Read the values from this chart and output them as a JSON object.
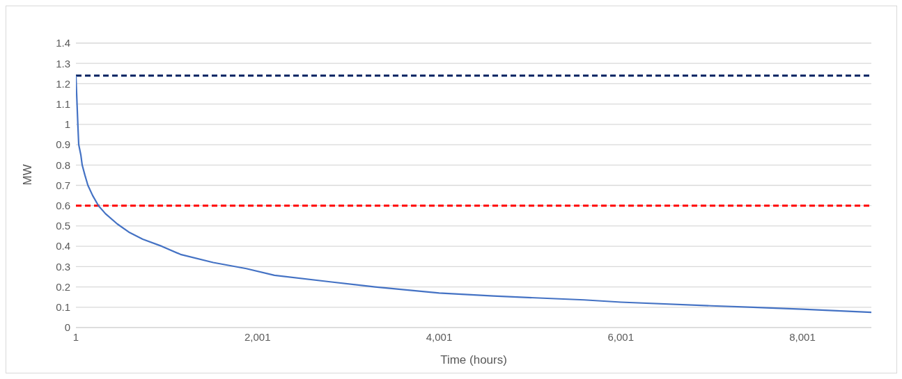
{
  "chart_data": {
    "type": "line",
    "xlabel": "Time (hours)",
    "ylabel": "MW",
    "x": [
      1,
      24,
      32,
      55,
      70,
      100,
      133,
      185,
      249,
      327,
      456,
      583,
      737,
      947,
      1153,
      1513,
      1877,
      2187,
      2800,
      3296,
      4001,
      4600,
      5598,
      6001,
      7000,
      7458,
      8001,
      8760
    ],
    "series": [
      {
        "color": "#4472c4",
        "values": [
          1.24,
          0.98,
          0.9,
          0.85,
          0.8,
          0.75,
          0.7,
          0.65,
          0.6,
          0.56,
          0.51,
          0.47,
          0.435,
          0.4,
          0.36,
          0.32,
          0.29,
          0.257,
          0.225,
          0.2,
          0.17,
          0.155,
          0.136,
          0.125,
          0.107,
          0.1,
          0.09,
          0.075
        ]
      }
    ],
    "xlim": [
      1,
      8760
    ],
    "xticks": [
      1,
      {
        "value": 2001,
        "label": "2,001"
      },
      {
        "value": 4001,
        "label": "4,001"
      },
      {
        "value": 6001,
        "label": "6,001"
      },
      {
        "value": 8001,
        "label": "8,001"
      }
    ],
    "ylim": [
      0,
      1.4
    ],
    "yticks": [
      0,
      0.1,
      0.2,
      0.3,
      0.4,
      0.5,
      0.6,
      0.7,
      0.8,
      0.9,
      1,
      1.1,
      1.2,
      1.3,
      1.4
    ],
    "ref_lines": [
      {
        "axis": "y",
        "value": 1.24,
        "color": "#002060",
        "line_style": "dashed"
      },
      {
        "axis": "y",
        "value": 0.6,
        "color": "#ff0000",
        "line_style": "dashed"
      }
    ],
    "grid": "y",
    "legend": false,
    "marker": "none",
    "line_style": "solid"
  }
}
